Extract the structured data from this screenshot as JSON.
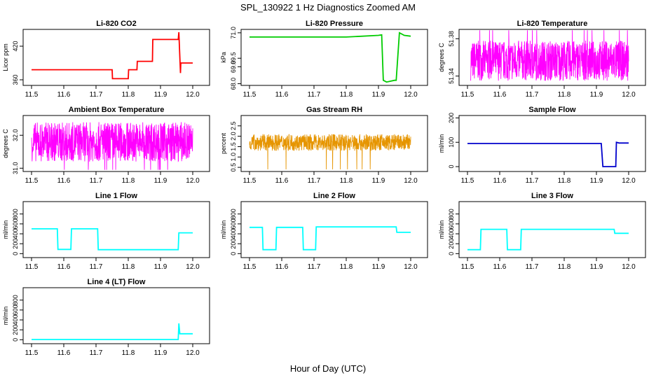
{
  "figure": {
    "title": "SPL_130922  1 Hz Diagnostics Zoomed AM",
    "xlabel": "Hour of Day (UTC)"
  },
  "chart_data": [
    {
      "type": "line",
      "title": "Li-820 CO2",
      "ylabel": "Licor ppm",
      "color": "#ff0000",
      "xlim": [
        11.5,
        12.0
      ],
      "xticks": [
        "11.5",
        "11.6",
        "11.7",
        "11.8",
        "11.9",
        "12.0"
      ],
      "ylim": [
        350,
        450
      ],
      "yticks": [
        {
          "v": 360,
          "label": "360"
        },
        {
          "v": 420,
          "label": "420"
        }
      ],
      "series": [
        {
          "x": [
            11.5,
            11.75,
            11.751,
            11.8,
            11.801,
            11.827,
            11.828,
            11.875,
            11.876,
            11.955,
            11.957,
            11.962,
            11.963,
            12.0
          ],
          "y": [
            378,
            378,
            362,
            362,
            378,
            378,
            393,
            393,
            432,
            432,
            445,
            372,
            390,
            390
          ]
        }
      ]
    },
    {
      "type": "line",
      "title": "Li-820 Pressure",
      "ylabel": "kPa",
      "color": "#00cc00",
      "xlim": [
        11.5,
        12.0
      ],
      "xticks": [
        "11.5",
        "11.6",
        "11.7",
        "11.8",
        "11.9",
        "12.0"
      ],
      "ylim": [
        67.9,
        71.2
      ],
      "yticks": [
        {
          "v": 68.0,
          "label": "68.0"
        },
        {
          "v": 69.0,
          "label": "69.0"
        },
        {
          "v": 69.5,
          "label": "69.5"
        },
        {
          "v": 71.0,
          "label": "71.0"
        }
      ],
      "series": [
        {
          "x": [
            11.5,
            11.8,
            11.9,
            11.91,
            11.915,
            11.925,
            11.95,
            11.955,
            11.965,
            11.98,
            12.0
          ],
          "y": [
            70.75,
            70.75,
            70.85,
            70.88,
            68.2,
            68.1,
            68.2,
            68.2,
            71.0,
            70.85,
            70.8
          ]
        }
      ]
    },
    {
      "type": "line",
      "title": "Li-820 Temperature",
      "ylabel": "degrees C",
      "color": "#ff00ff",
      "xlim": [
        11.5,
        12.0
      ],
      "xticks": [
        "11.5",
        "11.6",
        "11.7",
        "11.8",
        "11.9",
        "12.0"
      ],
      "ylim": [
        51.33,
        51.39
      ],
      "yticks": [
        {
          "v": 51.34,
          "label": "51.34"
        },
        {
          "v": 51.38,
          "label": "51.38"
        }
      ],
      "noise": {
        "x0": 11.51,
        "x1": 12.0,
        "lo": 51.335,
        "hi": 51.378,
        "spike": 51.389
      },
      "series": []
    },
    {
      "type": "line",
      "title": "Ambient Box Temperature",
      "ylabel": "degrees C",
      "color": "#ff00ff",
      "xlim": [
        11.5,
        12.0
      ],
      "xticks": [
        "11.5",
        "11.6",
        "11.7",
        "11.8",
        "11.9",
        "12.0"
      ],
      "ylim": [
        30.9,
        32.6
      ],
      "yticks": [
        {
          "v": 31.0,
          "label": "31.0"
        },
        {
          "v": 32.0,
          "label": "32.0"
        }
      ],
      "noise": {
        "x0": 11.5,
        "x1": 12.0,
        "lo": 31.2,
        "hi": 32.4,
        "spike": 30.95
      },
      "series": []
    },
    {
      "type": "line",
      "title": "Gas Stream RH",
      "ylabel": "percent",
      "color": "#e69500",
      "xlim": [
        11.5,
        12.0
      ],
      "xticks": [
        "11.5",
        "11.6",
        "11.7",
        "11.8",
        "11.9",
        "12.0"
      ],
      "ylim": [
        0.3,
        3.0
      ],
      "yticks": [
        {
          "v": 0.5,
          "label": "0.5"
        },
        {
          "v": 1.0,
          "label": "1.0"
        },
        {
          "v": 1.5,
          "label": "1.5"
        },
        {
          "v": 2.0,
          "label": "2.0"
        },
        {
          "v": 2.5,
          "label": "2.5"
        }
      ],
      "noise": {
        "x0": 11.5,
        "x1": 12.0,
        "lo": 1.3,
        "hi": 2.1,
        "spike": 0.4
      },
      "series": []
    },
    {
      "type": "line",
      "title": "Sample Flow",
      "ylabel": "ml/min",
      "color": "#0000cc",
      "xlim": [
        11.5,
        12.0
      ],
      "xticks": [
        "11.5",
        "11.6",
        "11.7",
        "11.8",
        "11.9",
        "12.0"
      ],
      "ylim": [
        -20,
        210
      ],
      "yticks": [
        {
          "v": 0,
          "label": "0"
        },
        {
          "v": 100,
          "label": "100"
        },
        {
          "v": 200,
          "label": "200"
        }
      ],
      "series": [
        {
          "x": [
            11.5,
            11.915,
            11.92,
            11.96,
            11.962,
            11.97,
            12.0
          ],
          "y": [
            95,
            95,
            0,
            0,
            100,
            97,
            97
          ]
        }
      ]
    },
    {
      "type": "line",
      "title": "Line 1 Flow",
      "ylabel": "ml/min",
      "color": "#00ffff",
      "xlim": [
        11.5,
        12.0
      ],
      "xticks": [
        "11.5",
        "11.6",
        "11.7",
        "11.8",
        "11.9",
        "12.0"
      ],
      "ylim": [
        -80,
        1050
      ],
      "yticks": [
        {
          "v": 0,
          "label": "0"
        },
        {
          "v": 200,
          "label": "200"
        },
        {
          "v": 400,
          "label": "400"
        },
        {
          "v": 600,
          "label": "600"
        },
        {
          "v": 800,
          "label": "800"
        }
      ],
      "series": [
        {
          "x": [
            11.5,
            11.58,
            11.582,
            11.622,
            11.624,
            11.705,
            11.707,
            11.955,
            11.957,
            12.0
          ],
          "y": [
            500,
            500,
            85,
            85,
            500,
            500,
            80,
            80,
            420,
            420
          ]
        }
      ]
    },
    {
      "type": "line",
      "title": "Line 2 Flow",
      "ylabel": "ml/min",
      "color": "#00ffff",
      "xlim": [
        11.5,
        12.0
      ],
      "xticks": [
        "11.5",
        "11.6",
        "11.7",
        "11.8",
        "11.9",
        "12.0"
      ],
      "ylim": [
        -80,
        1050
      ],
      "yticks": [
        {
          "v": 0,
          "label": "0"
        },
        {
          "v": 200,
          "label": "200"
        },
        {
          "v": 400,
          "label": "400"
        },
        {
          "v": 600,
          "label": "600"
        },
        {
          "v": 800,
          "label": "800"
        }
      ],
      "series": [
        {
          "x": [
            11.5,
            11.54,
            11.542,
            11.582,
            11.584,
            11.665,
            11.667,
            11.705,
            11.707,
            11.955,
            11.957,
            12.0
          ],
          "y": [
            530,
            530,
            80,
            80,
            530,
            530,
            80,
            80,
            540,
            540,
            430,
            430
          ]
        }
      ]
    },
    {
      "type": "line",
      "title": "Line 3 Flow",
      "ylabel": "ml/min",
      "color": "#00ffff",
      "xlim": [
        11.5,
        12.0
      ],
      "xticks": [
        "11.5",
        "11.6",
        "11.7",
        "11.8",
        "11.9",
        "12.0"
      ],
      "ylim": [
        -80,
        1050
      ],
      "yticks": [
        {
          "v": 0,
          "label": "0"
        },
        {
          "v": 200,
          "label": "200"
        },
        {
          "v": 400,
          "label": "400"
        },
        {
          "v": 600,
          "label": "600"
        },
        {
          "v": 800,
          "label": "800"
        }
      ],
      "series": [
        {
          "x": [
            11.5,
            11.54,
            11.542,
            11.622,
            11.624,
            11.665,
            11.667,
            11.955,
            11.957,
            12.0
          ],
          "y": [
            80,
            80,
            490,
            490,
            80,
            80,
            490,
            490,
            410,
            410
          ]
        }
      ]
    },
    {
      "type": "line",
      "title": "Line 4 (LT) Flow",
      "ylabel": "ml/min",
      "color": "#00ffff",
      "xlim": [
        11.5,
        12.0
      ],
      "xticks": [
        "11.5",
        "11.6",
        "11.7",
        "11.8",
        "11.9",
        "12.0"
      ],
      "ylim": [
        -80,
        1050
      ],
      "yticks": [
        {
          "v": 0,
          "label": "0"
        },
        {
          "v": 200,
          "label": "200"
        },
        {
          "v": 400,
          "label": "400"
        },
        {
          "v": 600,
          "label": "600"
        },
        {
          "v": 800,
          "label": "800"
        }
      ],
      "series": [
        {
          "x": [
            11.5,
            11.955,
            11.957,
            11.96,
            11.962,
            12.0
          ],
          "y": [
            5,
            5,
            330,
            120,
            120,
            120
          ]
        }
      ]
    }
  ]
}
